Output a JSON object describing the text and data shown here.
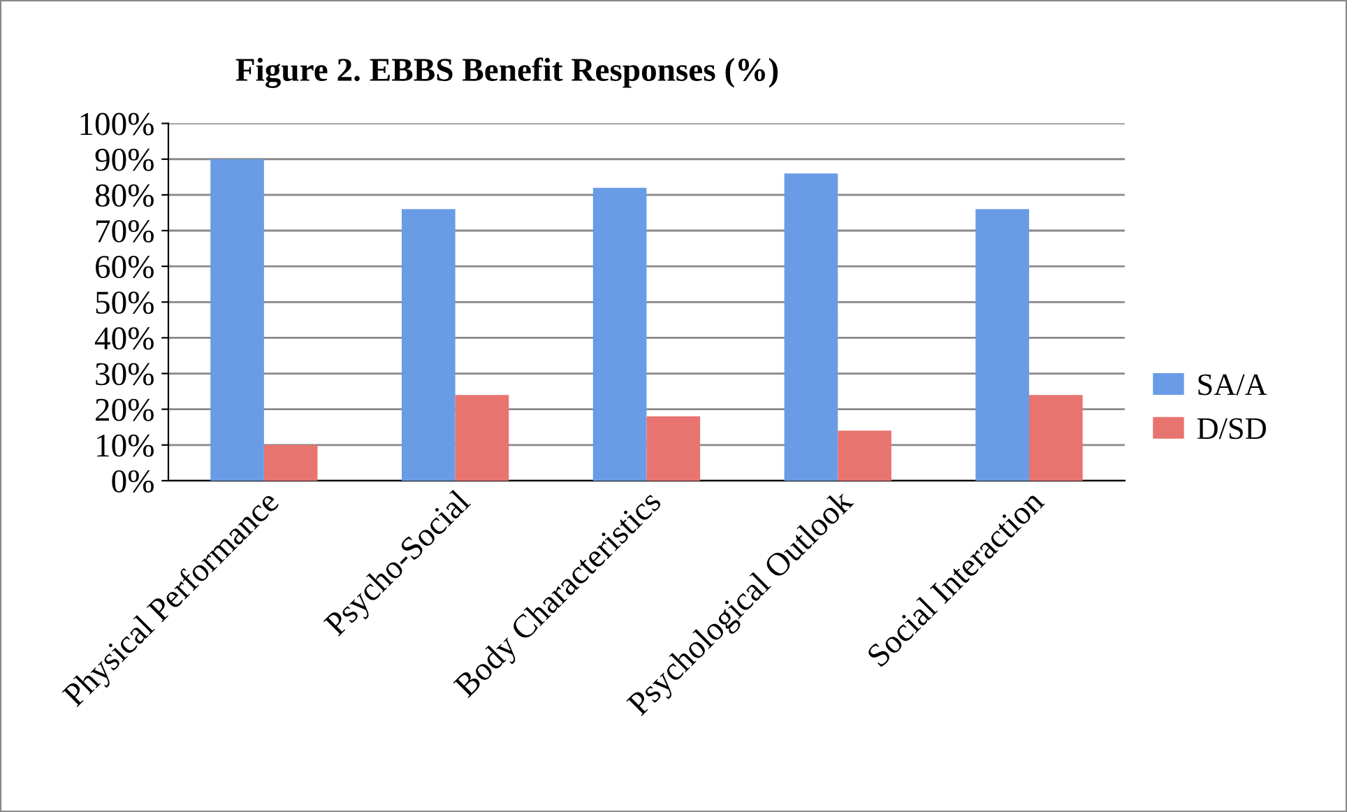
{
  "chart_data": {
    "type": "bar",
    "title": "Figure 2. EBBS Benefit Responses (%)",
    "categories": [
      "Physical Performance",
      "Psycho-Social",
      "Body Characteristics",
      "Psychological Outlook",
      "Social Interaction"
    ],
    "series": [
      {
        "name": "SA/A",
        "color": "#6a9ce6",
        "values": [
          90,
          76,
          82,
          86,
          76
        ]
      },
      {
        "name": "D/SD",
        "color": "#e87470",
        "values": [
          10,
          24,
          18,
          14,
          24
        ]
      }
    ],
    "ylim": [
      0,
      100
    ],
    "yticks": [
      {
        "value": 0,
        "label": "0%"
      },
      {
        "value": 10,
        "label": "10%"
      },
      {
        "value": 20,
        "label": "20%"
      },
      {
        "value": 30,
        "label": "30%"
      },
      {
        "value": 40,
        "label": "40%"
      },
      {
        "value": 50,
        "label": "50%"
      },
      {
        "value": 60,
        "label": "60%"
      },
      {
        "value": 70,
        "label": "70%"
      },
      {
        "value": 80,
        "label": "80%"
      },
      {
        "value": 90,
        "label": "90%"
      },
      {
        "value": 100,
        "label": "100%"
      }
    ],
    "grid": "y",
    "legend": "right"
  }
}
